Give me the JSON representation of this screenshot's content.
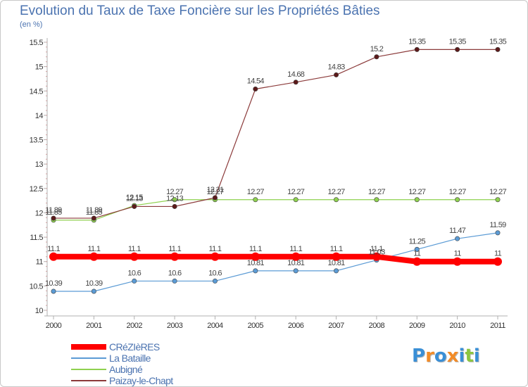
{
  "chart_data": {
    "type": "line",
    "title": "Evolution du Taux de Taxe Foncière sur les Propriétés Bâties",
    "unit": "(en %)",
    "xlabel": "",
    "ylabel": "",
    "x": [
      "2000",
      "2001",
      "2002",
      "2003",
      "2004",
      "2005",
      "2006",
      "2007",
      "2008",
      "2009",
      "2010",
      "2011"
    ],
    "ylim": [
      10,
      15.5
    ],
    "yticks": [
      "10",
      "10.5",
      "11",
      "11.5",
      "12",
      "12.5",
      "13",
      "13.5",
      "14",
      "14.5",
      "15",
      "15.5"
    ],
    "grid": false,
    "legend_position": "bottom-left",
    "series": [
      {
        "name": "CRéZIèRES",
        "color": "#ff0000",
        "values": [
          11.1,
          11.1,
          11.1,
          11.1,
          11.1,
          11.1,
          11.1,
          11.1,
          11.1,
          11,
          11,
          11
        ],
        "labels": [
          "11.1",
          "11.1",
          "11.1",
          "11.1",
          "11.1",
          "11.1",
          "11.1",
          "11.1",
          "11.1",
          "11",
          "11",
          "11"
        ]
      },
      {
        "name": "La Bataille",
        "color": "#5b9bd5",
        "values": [
          10.39,
          10.39,
          10.6,
          10.6,
          10.6,
          10.81,
          10.81,
          10.81,
          11.03,
          11.25,
          11.47,
          11.59
        ],
        "labels": [
          "10.39",
          "10.39",
          "10.6",
          "10.6",
          "10.6",
          "10.81",
          "10.81",
          "10.81",
          "11.03",
          "11.25",
          "11.47",
          "11.59"
        ]
      },
      {
        "name": "Aubigné",
        "color": "#8fd14f",
        "values": [
          11.85,
          11.85,
          12.15,
          12.27,
          12.27,
          12.27,
          12.27,
          12.27,
          12.27,
          12.27,
          12.27,
          12.27
        ],
        "labels": [
          "11.85",
          "11.85",
          "12.15",
          "12.27",
          "12.27",
          "12.27",
          "12.27",
          "12.27",
          "12.27",
          "12.27",
          "12.27",
          "12.27"
        ]
      },
      {
        "name": "Paizay-le-Chapt",
        "color": "#8b3a3a",
        "values": [
          11.89,
          11.89,
          12.13,
          12.13,
          12.31,
          14.54,
          14.68,
          14.83,
          15.2,
          15.35,
          15.35,
          15.35
        ],
        "labels": [
          "11.89",
          "11.89",
          "12.13",
          "12.13",
          "12.31",
          "14.54",
          "14.68",
          "14.83",
          "15.2",
          "15.35",
          "15.35",
          "15.35"
        ]
      }
    ]
  },
  "logo": {
    "letters": [
      "P",
      "r",
      "o",
      "x",
      "i",
      "t",
      "i"
    ],
    "colors": [
      "#3a8fd6",
      "#f28c28",
      "#3a8fd6",
      "#f28c28",
      "#3a8fd6",
      "#8cc63f",
      "#3a8fd6"
    ]
  }
}
